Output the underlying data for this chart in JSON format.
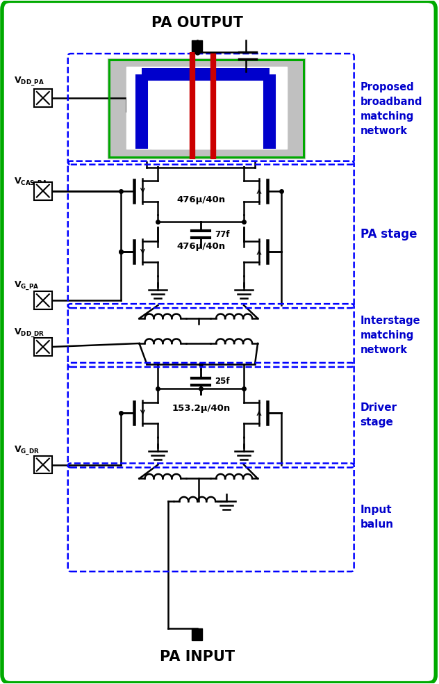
{
  "bg_color": "#ffffff",
  "outer_border_color": "#00aa00",
  "dashed_border_color": "#0000ff",
  "circuit_color": "#000000",
  "blue_label_color": "#0000cc",
  "title_top": "PA OUTPUT",
  "title_bottom": "PA INPUT",
  "label_proposed": "Proposed\nbroadband\nmatching\nnetwork",
  "label_pa_stage": "PA stage",
  "label_interstage": "Interstage\nmatching\nnetwork",
  "label_driver": "Driver\nstage",
  "label_input_balun": "Input\nbalun",
  "transformer_blue_color": "#0000cc",
  "transformer_red_color": "#cc0000",
  "transformer_gray_color": "#c0c0c0",
  "transformer_green_border": "#00aa00",
  "pa_label1": "476μ/40n",
  "pa_label2": "476μ/40n",
  "cap_pa": "77f",
  "driver_label": "153.2μ/40n",
  "cap_dr": "25f"
}
